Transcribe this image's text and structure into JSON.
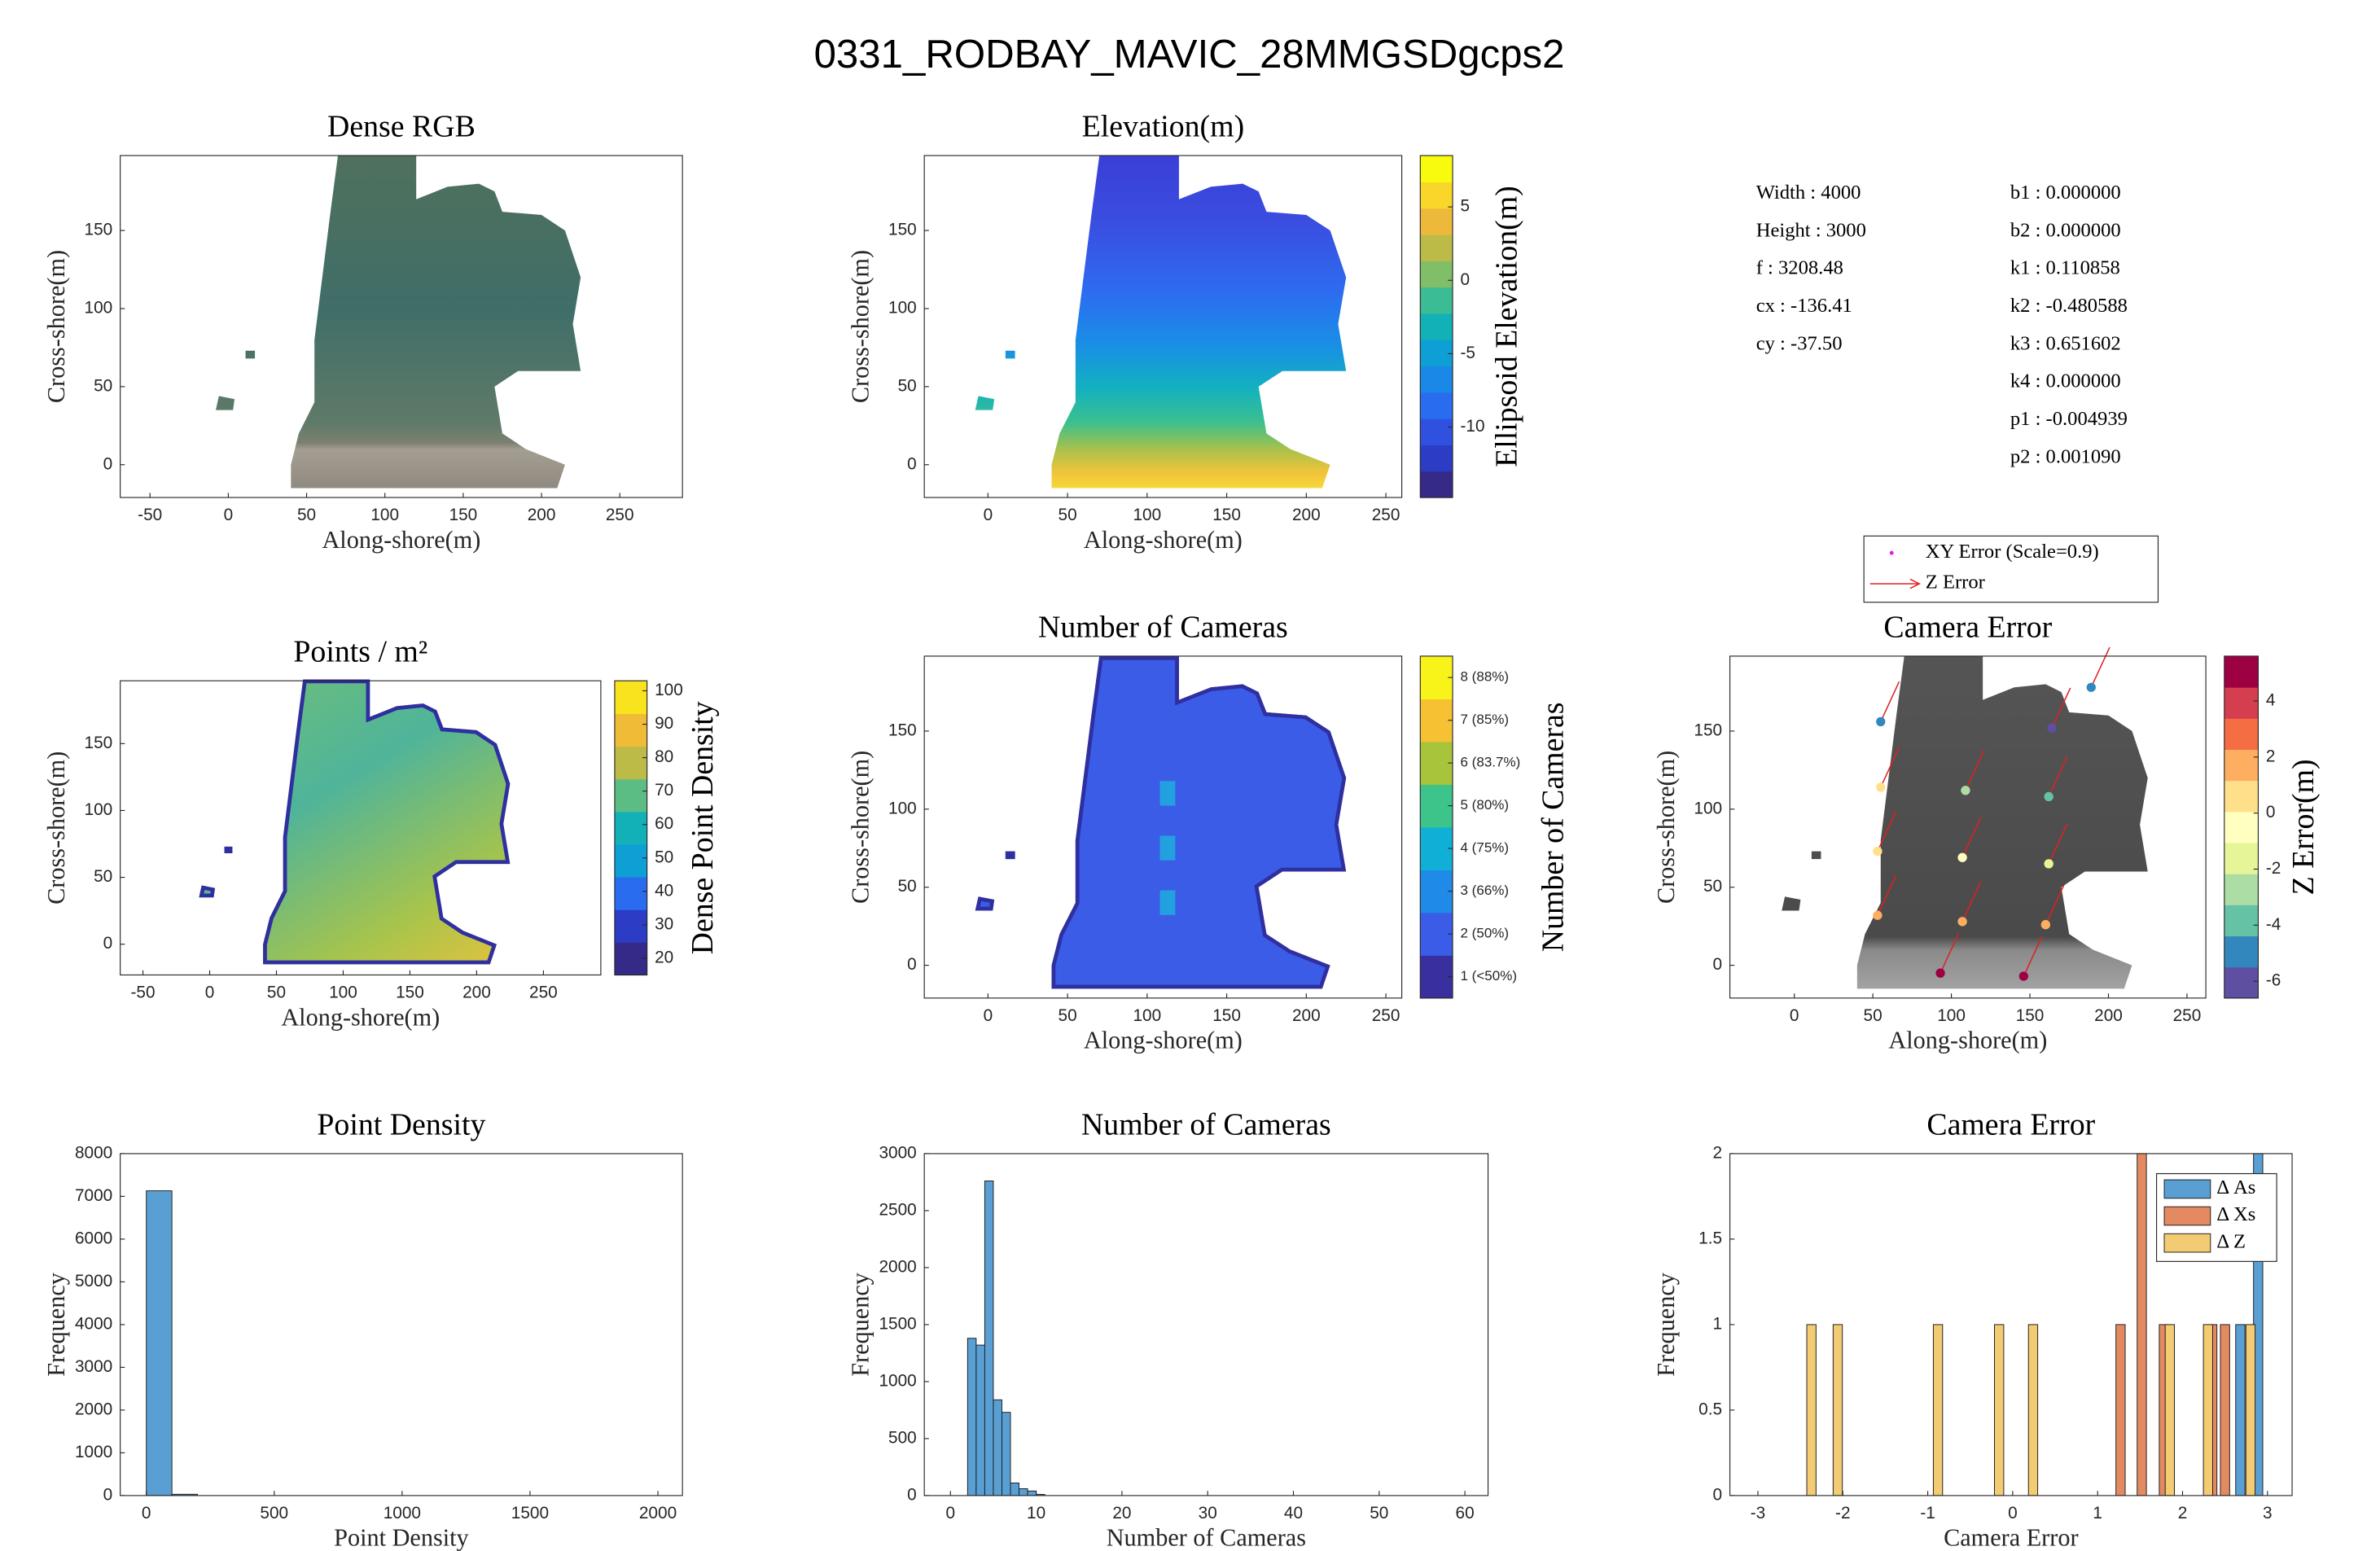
{
  "title": "0331_RODBAY_MAVIC_28MMGSDgcps2",
  "camera_parameters": {
    "left": [
      "Width : 4000",
      "Height : 3000",
      "f : 3208.48",
      "cx : -136.41",
      "cy : -37.50"
    ],
    "right": [
      "b1 : 0.000000",
      "b2 : 0.000000",
      "k1 : 0.110858",
      "k2 : -0.480588",
      "k3 : 0.651602",
      "k4 : 0.000000",
      "p1 : -0.004939",
      "p2 : 0.001090"
    ]
  },
  "chart_data": [
    {
      "type": "image",
      "title": "Dense RGB",
      "xlabel": "Along-shore(m)",
      "ylabel": "Cross-shore(m)",
      "xlim": [
        -69,
        290
      ],
      "xticks": [
        -50,
        0,
        50,
        100,
        150,
        200,
        250
      ],
      "ylim": [
        -21,
        198
      ],
      "yticks": [
        0,
        50,
        100,
        150
      ]
    },
    {
      "type": "heatmap",
      "title": "Elevation(m)",
      "xlabel": "Along-shore(m)",
      "ylabel": "Cross-shore(m)",
      "xlim": [
        -40,
        260
      ],
      "xticks": [
        0,
        50,
        100,
        150,
        200,
        250
      ],
      "ylim": [
        -21,
        198
      ],
      "yticks": [
        0,
        50,
        100,
        150
      ],
      "colorbar": {
        "label": "Ellipsoid Elevation(m)",
        "lim": [
          -14.8,
          8.5
        ],
        "ticks": [
          -10,
          -5,
          0,
          5
        ],
        "colors": [
          "#352a87",
          "#2c3cc5",
          "#3050e0",
          "#2a6cf0",
          "#1a88e6",
          "#0e9fd4",
          "#12b1b8",
          "#3cbc94",
          "#80bf68",
          "#bdbb48",
          "#ecb93a",
          "#f9d72a",
          "#f9fb0e"
        ]
      }
    },
    {
      "type": "heatmap",
      "title": "Points / m²",
      "xlabel": "Along-shore(m)",
      "ylabel": "Cross-shore(m)",
      "xlim": [
        -67,
        293
      ],
      "xticks": [
        -50,
        0,
        50,
        100,
        150,
        200,
        250
      ],
      "ylim": [
        -23,
        197
      ],
      "yticks": [
        0,
        50,
        100,
        150
      ],
      "colorbar": {
        "label": "Dense Point Density",
        "lim": [
          15,
          103
        ],
        "ticks": [
          20,
          30,
          40,
          50,
          60,
          70,
          80,
          90,
          100
        ],
        "colors": [
          "#352a87",
          "#2c3cc5",
          "#2a6cf0",
          "#0e9fd4",
          "#12b1b8",
          "#5cbd84",
          "#bdbb48",
          "#f0bc38",
          "#f9e21e"
        ]
      }
    },
    {
      "type": "heatmap",
      "title": "Number of Cameras",
      "xlabel": "Along-shore(m)",
      "ylabel": "Cross-shore(m)",
      "xlim": [
        -40,
        260
      ],
      "xticks": [
        0,
        50,
        100,
        150,
        200,
        250
      ],
      "ylim": [
        -21,
        198
      ],
      "yticks": [
        0,
        50,
        100,
        150
      ],
      "colorbar": {
        "label": "Number of Cameras",
        "lim": [
          0.5,
          8.5
        ],
        "ticks": [
          {
            "value": 1,
            "label": "1 (<50%)"
          },
          {
            "value": 2,
            "label": "2 (50%)"
          },
          {
            "value": 3,
            "label": "3 (66%)"
          },
          {
            "value": 4,
            "label": "4 (75%)"
          },
          {
            "value": 5,
            "label": "5 (80%)"
          },
          {
            "value": 6,
            "label": "6 (83.7%)"
          },
          {
            "value": 7,
            "label": "7 (85%)"
          },
          {
            "value": 8,
            "label": "8 (88%)"
          }
        ],
        "colors": [
          "#3a2f9e",
          "#3a5ce6",
          "#1f8ae8",
          "#10b0d6",
          "#3cc48a",
          "#a8c43a",
          "#f6c132",
          "#f8f41a"
        ]
      }
    },
    {
      "type": "scatter",
      "title": "Camera Error",
      "xlabel": "Along-shore(m)",
      "ylabel": "Cross-shore(m)",
      "xlim": [
        -41,
        262
      ],
      "xticks": [
        0,
        50,
        100,
        150,
        200,
        250
      ],
      "ylim": [
        -21,
        198
      ],
      "yticks": [
        0,
        50,
        100,
        150
      ],
      "legend": [
        "XY Error (Scale=0.9)",
        "Z Error"
      ],
      "x": [
        53,
        107,
        160,
        93,
        146,
        53,
        107,
        162,
        55,
        109,
        162,
        55,
        164,
        189
      ],
      "y": [
        32,
        28,
        26,
        -5,
        -7,
        73,
        69,
        65,
        114,
        112,
        108,
        156,
        152,
        178
      ],
      "z": [
        1.5,
        2,
        1.8,
        5,
        4.5,
        0.5,
        -0.5,
        -1.5,
        0.3,
        -3,
        -3.5,
        -5,
        -5.5,
        -5
      ],
      "colorbar": {
        "label": "Z Error(m)",
        "lim": [
          -6.6,
          5.6
        ],
        "ticks": [
          -6,
          -4,
          -2,
          0,
          2,
          4
        ],
        "colors": [
          "#5e4fa2",
          "#3288bd",
          "#66c2a5",
          "#abdda4",
          "#e6f598",
          "#ffffbf",
          "#fee08b",
          "#fdae61",
          "#f46d43",
          "#d53e4f",
          "#9e0142"
        ]
      }
    },
    {
      "type": "histogram",
      "title": "Point Density",
      "xlabel": "Point Density",
      "ylabel": "Frequency",
      "xlim": [
        -102,
        2096
      ],
      "xticks": [
        0,
        500,
        1000,
        1500,
        2000
      ],
      "ylim": [
        0,
        8000
      ],
      "yticks": [
        0,
        1000,
        2000,
        3000,
        4000,
        5000,
        6000,
        7000,
        8000
      ],
      "bins": [
        0,
        100,
        200,
        300,
        400,
        500,
        600,
        700,
        800,
        900,
        1000,
        1100,
        1200,
        1300,
        1400,
        1500,
        1600,
        1700,
        1800,
        1900,
        2000
      ],
      "values": [
        7130,
        30,
        0,
        0,
        0,
        0,
        0,
        0,
        0,
        0,
        0,
        0,
        0,
        0,
        0,
        0,
        0,
        0,
        0,
        0
      ],
      "color": "#5a9fd4"
    },
    {
      "type": "histogram",
      "title": "Number of Cameras",
      "xlabel": "Number of Cameras",
      "ylabel": "Frequency",
      "xlim": [
        -3.05,
        62.7
      ],
      "xticks": [
        0,
        10,
        20,
        30,
        40,
        50,
        60
      ],
      "ylim": [
        0,
        3000
      ],
      "yticks": [
        0,
        500,
        1000,
        1500,
        2000,
        2500,
        3000
      ],
      "bins": [
        2,
        3,
        4,
        5,
        6,
        7,
        8,
        9,
        10,
        11
      ],
      "values": [
        1380,
        1320,
        2760,
        840,
        730,
        110,
        60,
        40,
        10
      ],
      "color": "#5a9fd4"
    },
    {
      "type": "bar",
      "title": "Camera Error",
      "xlabel": "Camera Error",
      "ylabel": "Frequency",
      "xlim": [
        -3.33,
        3.29
      ],
      "xticks": [
        -3,
        -2,
        -1,
        0,
        1,
        2,
        3
      ],
      "ylim": [
        0,
        2
      ],
      "yticks": [
        0,
        0.5,
        1,
        1.5,
        2
      ],
      "series": [
        {
          "name": "Δ As",
          "color": "#5a9fd4",
          "x": [
            2.68,
            2.89
          ],
          "values": [
            1,
            2
          ]
        },
        {
          "name": "Δ Xs",
          "color": "#e38a62",
          "x": [
            1.27,
            1.52,
            1.78,
            2.35,
            2.5
          ],
          "values": [
            1,
            2,
            1,
            1,
            1
          ]
        },
        {
          "name": "Δ Z",
          "color": "#f2cb73",
          "x": [
            -2.37,
            -2.06,
            -0.88,
            -0.16,
            0.24,
            1.85,
            2.3,
            2.8
          ],
          "values": [
            1,
            1,
            1,
            1,
            1,
            1,
            1,
            1
          ]
        }
      ]
    }
  ]
}
